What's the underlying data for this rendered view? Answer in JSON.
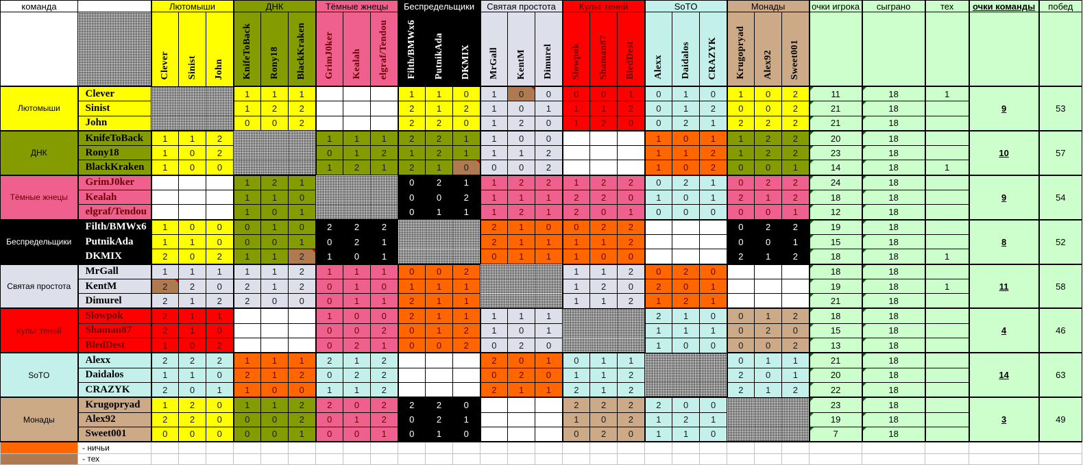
{
  "header": {
    "team_col": "команда",
    "player_points": "очки игрока",
    "played": "сыграно",
    "tech": "тех",
    "team_points": "очки команды",
    "wins": "побед"
  },
  "colors": {
    "draw": "#ff6600",
    "tech": "#b07a50",
    "not_played": "#ffffff",
    "stats_bg": "#ccffcc",
    "self_block": "pattern"
  },
  "teams": [
    {
      "name": "Лютомыши",
      "color": "#ffff00",
      "text_color": "#000000",
      "team_points": "9",
      "wins": "53",
      "blocks": [
        "pattern",
        "#ffff00",
        "#ffffff",
        "#ffff00",
        "#dde0ea",
        "#ff0000",
        "#c4f0ec",
        "#ffff00"
      ],
      "players": [
        {
          "name": "Clever",
          "scores": [
            null,
            null,
            null,
            1,
            1,
            1,
            null,
            null,
            null,
            1,
            1,
            0,
            1,
            0,
            0,
            0,
            0,
            1,
            0,
            1,
            0,
            1,
            0,
            2
          ],
          "tech_cells": [
            13
          ],
          "points": "11",
          "played": "18",
          "tech": "1"
        },
        {
          "name": "Sinist",
          "scores": [
            null,
            null,
            null,
            1,
            2,
            2,
            null,
            null,
            null,
            2,
            1,
            2,
            1,
            0,
            1,
            1,
            1,
            2,
            0,
            1,
            2,
            0,
            0,
            2
          ],
          "tech_cells": [],
          "points": "21",
          "played": "18",
          "tech": ""
        },
        {
          "name": "John",
          "scores": [
            null,
            null,
            null,
            0,
            0,
            2,
            null,
            null,
            null,
            2,
            2,
            0,
            1,
            2,
            0,
            1,
            2,
            0,
            0,
            2,
            1,
            2,
            2,
            2
          ],
          "tech_cells": [],
          "points": "21",
          "played": "18",
          "tech": ""
        }
      ]
    },
    {
      "name": "ДНК",
      "color": "#849c00",
      "text_color": "#000000",
      "team_points": "10",
      "wins": "57",
      "blocks": [
        "#ffff00",
        "pattern",
        "#849c00",
        "#849c00",
        "#dde0ea",
        "#ffffff",
        "#ff6600",
        "#849c00"
      ],
      "players": [
        {
          "name": "KnifeToBack",
          "scores": [
            1,
            1,
            2,
            null,
            null,
            null,
            1,
            1,
            1,
            2,
            2,
            1,
            1,
            0,
            0,
            null,
            null,
            null,
            1,
            0,
            1,
            1,
            2,
            2
          ],
          "tech_cells": [],
          "points": "20",
          "played": "18",
          "tech": ""
        },
        {
          "name": "Rony18",
          "scores": [
            1,
            0,
            2,
            null,
            null,
            null,
            0,
            1,
            2,
            1,
            2,
            1,
            1,
            1,
            2,
            null,
            null,
            null,
            1,
            1,
            2,
            1,
            2,
            2
          ],
          "tech_cells": [],
          "points": "23",
          "played": "18",
          "tech": ""
        },
        {
          "name": "BlackKraken",
          "scores": [
            1,
            0,
            0,
            null,
            null,
            null,
            1,
            2,
            1,
            2,
            1,
            0,
            0,
            0,
            2,
            null,
            null,
            null,
            1,
            0,
            2,
            0,
            0,
            1
          ],
          "tech_cells": [
            11
          ],
          "points": "14",
          "played": "18",
          "tech": "1"
        }
      ]
    },
    {
      "name": "Тёмные жнецы",
      "color": "#f0608f",
      "text_color": "#6a0000",
      "team_points": "9",
      "wins": "54",
      "blocks": [
        "#ffffff",
        "#849c00",
        "pattern",
        "#000000",
        "#f0608f",
        "#f0608f",
        "#c4f0ec",
        "#f0608f"
      ],
      "players": [
        {
          "name": "GrimJ0ker",
          "scores": [
            null,
            null,
            null,
            1,
            2,
            1,
            null,
            null,
            null,
            0,
            2,
            1,
            1,
            2,
            2,
            1,
            2,
            2,
            0,
            2,
            1,
            0,
            2,
            2
          ],
          "tech_cells": [],
          "points": "24",
          "played": "18",
          "tech": ""
        },
        {
          "name": "Kealah",
          "scores": [
            null,
            null,
            null,
            1,
            1,
            0,
            null,
            null,
            null,
            0,
            0,
            2,
            1,
            1,
            1,
            2,
            2,
            0,
            1,
            0,
            1,
            2,
            1,
            2
          ],
          "tech_cells": [],
          "points": "18",
          "played": "18",
          "tech": ""
        },
        {
          "name": "elgraf/Tendou",
          "scores": [
            null,
            null,
            null,
            1,
            0,
            1,
            null,
            null,
            null,
            0,
            1,
            1,
            1,
            2,
            1,
            2,
            0,
            1,
            0,
            0,
            0,
            0,
            0,
            1
          ],
          "tech_cells": [],
          "points": "12",
          "played": "18",
          "tech": ""
        }
      ]
    },
    {
      "name": "Беспредельщики",
      "color": "#000000",
      "text_color": "#ffffff",
      "team_points": "8",
      "wins": "52",
      "blocks": [
        "#ffff00",
        "#849c00",
        "#000000",
        "pattern",
        "#ff6600",
        "#ff6600",
        "#ffffff",
        "#000000"
      ],
      "players": [
        {
          "name": "Filth/BMWx6",
          "scores": [
            1,
            0,
            0,
            0,
            1,
            0,
            2,
            2,
            2,
            null,
            null,
            null,
            2,
            1,
            0,
            0,
            2,
            2,
            null,
            null,
            null,
            0,
            2,
            2
          ],
          "tech_cells": [],
          "points": "19",
          "played": "18",
          "tech": ""
        },
        {
          "name": "PutnikAda",
          "scores": [
            1,
            1,
            0,
            0,
            0,
            1,
            0,
            2,
            1,
            null,
            null,
            null,
            2,
            1,
            1,
            1,
            1,
            2,
            null,
            null,
            null,
            0,
            0,
            1
          ],
          "tech_cells": [],
          "points": "15",
          "played": "18",
          "tech": ""
        },
        {
          "name": "DKMIX",
          "scores": [
            2,
            0,
            2,
            1,
            1,
            2,
            1,
            0,
            1,
            null,
            null,
            null,
            0,
            1,
            1,
            1,
            0,
            0,
            null,
            null,
            null,
            2,
            1,
            2
          ],
          "tech_cells": [
            5
          ],
          "points": "18",
          "played": "18",
          "tech": "1"
        }
      ]
    },
    {
      "name": "Святая простота",
      "color": "#dde0ea",
      "text_color": "#000000",
      "team_points": "11",
      "wins": "58",
      "blocks": [
        "#dde0ea",
        "#dde0ea",
        "#f0608f",
        "#ff6600",
        "pattern",
        "#dde0ea",
        "#ff6600",
        "#ffffff"
      ],
      "players": [
        {
          "name": "MrGall",
          "scores": [
            1,
            1,
            1,
            1,
            1,
            2,
            1,
            1,
            1,
            0,
            0,
            2,
            null,
            null,
            null,
            1,
            1,
            2,
            0,
            2,
            0,
            null,
            null,
            null
          ],
          "tech_cells": [],
          "points": "18",
          "played": "18",
          "tech": ""
        },
        {
          "name": "KentM",
          "scores": [
            2,
            2,
            0,
            2,
            1,
            2,
            0,
            1,
            0,
            1,
            1,
            1,
            null,
            null,
            null,
            1,
            2,
            0,
            2,
            0,
            1,
            null,
            null,
            null
          ],
          "tech_cells": [
            0
          ],
          "points": "19",
          "played": "18",
          "tech": "1"
        },
        {
          "name": "Dimurel",
          "scores": [
            2,
            1,
            2,
            2,
            0,
            0,
            0,
            1,
            1,
            2,
            1,
            1,
            null,
            null,
            null,
            1,
            1,
            2,
            1,
            2,
            1,
            null,
            null,
            null
          ],
          "tech_cells": [],
          "points": "21",
          "played": "18",
          "tech": ""
        }
      ]
    },
    {
      "name": "Культ теней",
      "color": "#ff0000",
      "text_color": "#6a0000",
      "team_points": "4",
      "wins": "46",
      "blocks": [
        "#ff0000",
        "#ffffff",
        "#f0608f",
        "#ff6600",
        "#dde0ea",
        "pattern",
        "#c4f0ec",
        "#ccaa88"
      ],
      "players": [
        {
          "name": "Slowpok",
          "scores": [
            2,
            1,
            1,
            null,
            null,
            null,
            1,
            0,
            0,
            2,
            1,
            1,
            1,
            1,
            1,
            null,
            null,
            null,
            2,
            1,
            0,
            0,
            1,
            2
          ],
          "tech_cells": [],
          "points": "18",
          "played": "18",
          "tech": ""
        },
        {
          "name": "Shaman87",
          "scores": [
            2,
            1,
            0,
            null,
            null,
            null,
            0,
            0,
            2,
            0,
            1,
            2,
            1,
            0,
            1,
            null,
            null,
            null,
            1,
            1,
            1,
            0,
            2,
            0
          ],
          "tech_cells": [],
          "points": "15",
          "played": "18",
          "tech": ""
        },
        {
          "name": "BledDest",
          "scores": [
            1,
            0,
            2,
            null,
            null,
            null,
            0,
            2,
            1,
            0,
            0,
            2,
            0,
            2,
            0,
            null,
            null,
            null,
            1,
            0,
            0,
            0,
            0,
            2
          ],
          "tech_cells": [],
          "points": "13",
          "played": "18",
          "tech": ""
        }
      ]
    },
    {
      "name": "SoTO",
      "color": "#c4f0ec",
      "text_color": "#000000",
      "team_points": "14",
      "wins": "63",
      "blocks": [
        "#c4f0ec",
        "#ff6600",
        "#c4f0ec",
        "#ffffff",
        "#ff6600",
        "#c4f0ec",
        "pattern",
        "#c4f0ec"
      ],
      "players": [
        {
          "name": "Alexx",
          "scores": [
            2,
            2,
            2,
            1,
            1,
            1,
            2,
            1,
            2,
            null,
            null,
            null,
            2,
            0,
            1,
            0,
            1,
            1,
            null,
            null,
            null,
            0,
            1,
            1
          ],
          "tech_cells": [],
          "points": "21",
          "played": "18",
          "tech": ""
        },
        {
          "name": "Daidalos",
          "scores": [
            1,
            1,
            0,
            2,
            1,
            2,
            0,
            2,
            2,
            null,
            null,
            null,
            0,
            2,
            0,
            1,
            1,
            2,
            null,
            null,
            null,
            2,
            0,
            1
          ],
          "tech_cells": [],
          "points": "20",
          "played": "18",
          "tech": ""
        },
        {
          "name": "CRAZYK",
          "scores": [
            2,
            0,
            1,
            1,
            0,
            0,
            1,
            1,
            2,
            null,
            null,
            null,
            2,
            1,
            1,
            2,
            1,
            2,
            null,
            null,
            null,
            2,
            1,
            2
          ],
          "tech_cells": [],
          "points": "22",
          "played": "18",
          "tech": ""
        }
      ]
    },
    {
      "name": "Монады",
      "color": "#ccaa88",
      "text_color": "#000000",
      "team_points": "3",
      "wins": "49",
      "blocks": [
        "#ffff00",
        "#849c00",
        "#f0608f",
        "#000000",
        "#ffffff",
        "#ccaa88",
        "#c4f0ec",
        "pattern"
      ],
      "players": [
        {
          "name": "Krugopryad",
          "scores": [
            1,
            2,
            0,
            1,
            1,
            2,
            2,
            0,
            2,
            2,
            2,
            0,
            null,
            null,
            null,
            2,
            2,
            2,
            2,
            0,
            0,
            null,
            null,
            null
          ],
          "tech_cells": [],
          "points": "23",
          "played": "18",
          "tech": ""
        },
        {
          "name": "Alex92",
          "scores": [
            2,
            2,
            0,
            0,
            0,
            2,
            0,
            1,
            2,
            0,
            2,
            1,
            null,
            null,
            null,
            1,
            0,
            2,
            1,
            2,
            1,
            null,
            null,
            null
          ],
          "tech_cells": [],
          "points": "19",
          "played": "18",
          "tech": ""
        },
        {
          "name": "Sweet001",
          "scores": [
            0,
            0,
            0,
            0,
            0,
            1,
            0,
            0,
            1,
            0,
            1,
            0,
            null,
            null,
            null,
            0,
            2,
            0,
            1,
            1,
            0,
            null,
            null,
            null
          ],
          "tech_cells": [],
          "points": "7",
          "played": "18",
          "tech": ""
        }
      ]
    }
  ],
  "legend": [
    {
      "label": "-  ничьи",
      "color": "#ff6600"
    },
    {
      "label": "-  тех",
      "color": "#b07a50"
    }
  ]
}
